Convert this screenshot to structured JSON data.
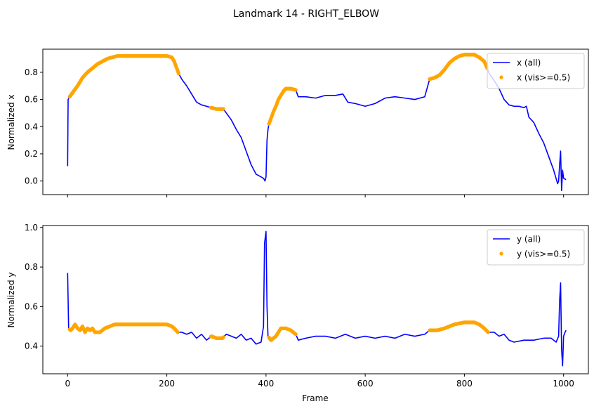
{
  "figure": {
    "title": "Landmark 14 - RIGHT_ELBOW"
  },
  "colors": {
    "all": "#0000ff",
    "vis": "#ffa500"
  },
  "chart_data": [
    {
      "type": "line",
      "ylabel": "Normalized x",
      "xlabel": "",
      "xlim": [
        -50,
        1050
      ],
      "ylim": [
        -0.1,
        0.97
      ],
      "xticks": [
        0,
        200,
        400,
        600,
        800,
        1000
      ],
      "yticks": [
        0.0,
        0.2,
        0.4,
        0.6,
        0.8
      ],
      "ytick_labels": [
        "0.0",
        "0.2",
        "0.4",
        "0.6",
        "0.8"
      ],
      "show_xtick_labels": false,
      "legend": {
        "placement": "top-right",
        "entries": [
          "x (all)",
          "x (vis>=0.5)"
        ]
      },
      "series_all": {
        "name": "x (all)",
        "points": [
          [
            0,
            0.11
          ],
          [
            1,
            0.6
          ],
          [
            4,
            0.62
          ],
          [
            10,
            0.65
          ],
          [
            20,
            0.7
          ],
          [
            30,
            0.76
          ],
          [
            40,
            0.8
          ],
          [
            50,
            0.83
          ],
          [
            60,
            0.86
          ],
          [
            70,
            0.88
          ],
          [
            80,
            0.9
          ],
          [
            90,
            0.91
          ],
          [
            100,
            0.92
          ],
          [
            120,
            0.92
          ],
          [
            150,
            0.92
          ],
          [
            180,
            0.92
          ],
          [
            200,
            0.92
          ],
          [
            210,
            0.91
          ],
          [
            215,
            0.88
          ],
          [
            220,
            0.83
          ],
          [
            224,
            0.79
          ],
          [
            230,
            0.75
          ],
          [
            240,
            0.7
          ],
          [
            250,
            0.64
          ],
          [
            260,
            0.58
          ],
          [
            270,
            0.56
          ],
          [
            280,
            0.55
          ],
          [
            289,
            0.54
          ],
          [
            300,
            0.53
          ],
          [
            314,
            0.53
          ],
          [
            320,
            0.5
          ],
          [
            330,
            0.45
          ],
          [
            340,
            0.38
          ],
          [
            350,
            0.32
          ],
          [
            360,
            0.22
          ],
          [
            370,
            0.12
          ],
          [
            380,
            0.05
          ],
          [
            390,
            0.03
          ],
          [
            395,
            0.02
          ],
          [
            398,
            0.0
          ],
          [
            400,
            0.03
          ],
          [
            402,
            0.3
          ],
          [
            404,
            0.38
          ],
          [
            406,
            0.42
          ],
          [
            410,
            0.46
          ],
          [
            415,
            0.51
          ],
          [
            420,
            0.55
          ],
          [
            425,
            0.6
          ],
          [
            430,
            0.63
          ],
          [
            435,
            0.66
          ],
          [
            440,
            0.68
          ],
          [
            450,
            0.68
          ],
          [
            460,
            0.67
          ],
          [
            465,
            0.62
          ],
          [
            480,
            0.62
          ],
          [
            500,
            0.61
          ],
          [
            520,
            0.63
          ],
          [
            540,
            0.63
          ],
          [
            555,
            0.64
          ],
          [
            565,
            0.58
          ],
          [
            580,
            0.57
          ],
          [
            600,
            0.55
          ],
          [
            620,
            0.57
          ],
          [
            640,
            0.61
          ],
          [
            660,
            0.62
          ],
          [
            680,
            0.61
          ],
          [
            700,
            0.6
          ],
          [
            720,
            0.62
          ],
          [
            730,
            0.75
          ],
          [
            740,
            0.76
          ],
          [
            750,
            0.78
          ],
          [
            760,
            0.82
          ],
          [
            770,
            0.87
          ],
          [
            780,
            0.9
          ],
          [
            790,
            0.92
          ],
          [
            800,
            0.93
          ],
          [
            820,
            0.93
          ],
          [
            830,
            0.91
          ],
          [
            840,
            0.88
          ],
          [
            846,
            0.83
          ],
          [
            850,
            0.79
          ],
          [
            860,
            0.74
          ],
          [
            870,
            0.68
          ],
          [
            880,
            0.6
          ],
          [
            890,
            0.56
          ],
          [
            900,
            0.55
          ],
          [
            910,
            0.55
          ],
          [
            920,
            0.54
          ],
          [
            925,
            0.55
          ],
          [
            930,
            0.47
          ],
          [
            940,
            0.43
          ],
          [
            950,
            0.35
          ],
          [
            960,
            0.28
          ],
          [
            970,
            0.18
          ],
          [
            980,
            0.08
          ],
          [
            988,
            -0.02
          ],
          [
            990,
            0.0
          ],
          [
            992,
            0.12
          ],
          [
            994,
            0.22
          ],
          [
            996,
            -0.07
          ],
          [
            998,
            0.08
          ],
          [
            1000,
            0.02
          ],
          [
            1005,
            0.01
          ]
        ]
      },
      "series_vis": {
        "name": "x (vis>=0.5)",
        "ranges": [
          [
            4,
            224
          ],
          [
            289,
            314
          ],
          [
            406,
            460
          ],
          [
            730,
            846
          ]
        ]
      }
    },
    {
      "type": "line",
      "ylabel": "Normalized y",
      "xlabel": "Frame",
      "xlim": [
        -50,
        1050
      ],
      "ylim": [
        0.26,
        1.01
      ],
      "xticks": [
        0,
        200,
        400,
        600,
        800,
        1000
      ],
      "yticks": [
        0.4,
        0.6,
        0.8,
        1.0
      ],
      "ytick_labels": [
        "0.4",
        "0.6",
        "0.8",
        "1.0"
      ],
      "show_xtick_labels": true,
      "legend": {
        "placement": "top-right",
        "entries": [
          "y (all)",
          "y (vis>=0.5)"
        ]
      },
      "series_all": {
        "name": "y (all)",
        "points": [
          [
            0,
            0.77
          ],
          [
            2,
            0.49
          ],
          [
            6,
            0.48
          ],
          [
            10,
            0.49
          ],
          [
            15,
            0.51
          ],
          [
            20,
            0.49
          ],
          [
            25,
            0.48
          ],
          [
            30,
            0.5
          ],
          [
            35,
            0.47
          ],
          [
            40,
            0.49
          ],
          [
            45,
            0.48
          ],
          [
            50,
            0.49
          ],
          [
            55,
            0.47
          ],
          [
            65,
            0.47
          ],
          [
            75,
            0.49
          ],
          [
            85,
            0.5
          ],
          [
            95,
            0.51
          ],
          [
            110,
            0.51
          ],
          [
            130,
            0.51
          ],
          [
            150,
            0.51
          ],
          [
            170,
            0.51
          ],
          [
            200,
            0.51
          ],
          [
            210,
            0.5
          ],
          [
            215,
            0.49
          ],
          [
            222,
            0.47
          ],
          [
            230,
            0.47
          ],
          [
            240,
            0.46
          ],
          [
            250,
            0.47
          ],
          [
            260,
            0.44
          ],
          [
            270,
            0.46
          ],
          [
            280,
            0.43
          ],
          [
            290,
            0.45
          ],
          [
            300,
            0.44
          ],
          [
            312,
            0.44
          ],
          [
            320,
            0.46
          ],
          [
            330,
            0.45
          ],
          [
            340,
            0.44
          ],
          [
            350,
            0.46
          ],
          [
            360,
            0.43
          ],
          [
            370,
            0.44
          ],
          [
            380,
            0.41
          ],
          [
            390,
            0.42
          ],
          [
            395,
            0.5
          ],
          [
            397,
            0.92
          ],
          [
            400,
            0.98
          ],
          [
            402,
            0.6
          ],
          [
            404,
            0.45
          ],
          [
            410,
            0.43
          ],
          [
            420,
            0.45
          ],
          [
            430,
            0.49
          ],
          [
            440,
            0.49
          ],
          [
            450,
            0.48
          ],
          [
            460,
            0.46
          ],
          [
            465,
            0.43
          ],
          [
            480,
            0.44
          ],
          [
            500,
            0.45
          ],
          [
            520,
            0.45
          ],
          [
            540,
            0.44
          ],
          [
            560,
            0.46
          ],
          [
            580,
            0.44
          ],
          [
            600,
            0.45
          ],
          [
            620,
            0.44
          ],
          [
            640,
            0.45
          ],
          [
            660,
            0.44
          ],
          [
            680,
            0.46
          ],
          [
            700,
            0.45
          ],
          [
            720,
            0.46
          ],
          [
            730,
            0.48
          ],
          [
            745,
            0.48
          ],
          [
            760,
            0.49
          ],
          [
            780,
            0.51
          ],
          [
            800,
            0.52
          ],
          [
            820,
            0.52
          ],
          [
            830,
            0.51
          ],
          [
            840,
            0.49
          ],
          [
            848,
            0.47
          ],
          [
            860,
            0.47
          ],
          [
            870,
            0.45
          ],
          [
            880,
            0.46
          ],
          [
            890,
            0.43
          ],
          [
            900,
            0.42
          ],
          [
            920,
            0.43
          ],
          [
            940,
            0.43
          ],
          [
            960,
            0.44
          ],
          [
            975,
            0.44
          ],
          [
            985,
            0.42
          ],
          [
            990,
            0.45
          ],
          [
            992,
            0.63
          ],
          [
            994,
            0.72
          ],
          [
            996,
            0.38
          ],
          [
            998,
            0.3
          ],
          [
            1000,
            0.45
          ],
          [
            1003,
            0.47
          ],
          [
            1005,
            0.48
          ]
        ]
      },
      "series_vis": {
        "name": "y (vis>=0.5)",
        "ranges": [
          [
            4,
            222
          ],
          [
            289,
            314
          ],
          [
            406,
            460
          ],
          [
            730,
            848
          ]
        ]
      }
    }
  ]
}
